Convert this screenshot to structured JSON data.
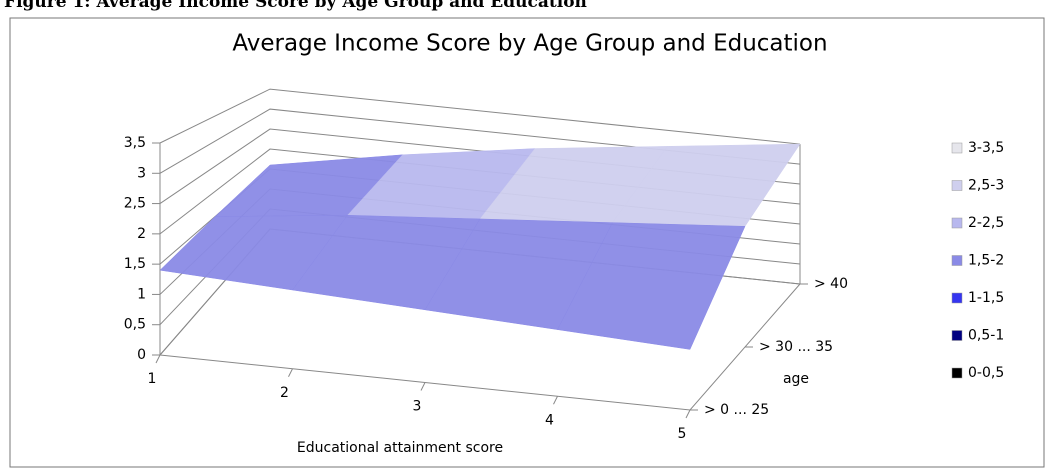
{
  "caption": "Figure 1: Average Income Score by Age Group and Education",
  "chart_data": {
    "type": "surface3d",
    "title": "Average Income Score by Age Group and Education",
    "x_label": "Educational attainment score",
    "depth_label": "age",
    "x": [
      1,
      2,
      3,
      4,
      5
    ],
    "xticks": [
      1,
      2,
      3,
      4,
      5
    ],
    "series": [
      {
        "name": "> 0 ... 25",
        "values": [
          1.4,
          1.3,
          1.2,
          1.1,
          1.0
        ]
      },
      {
        "name": "> 30 ... 35",
        "values": [
          1.5,
          1.8,
          2.0,
          2.2,
          2.4
        ]
      },
      {
        "name": "> 40",
        "values": [
          1.6,
          2.2,
          2.7,
          3.1,
          3.5
        ]
      }
    ],
    "zlim": [
      0,
      3.5
    ],
    "zticks": [
      0,
      {
        "value": 0.5,
        "label": "0,5"
      },
      1,
      {
        "value": 1.5,
        "label": "1,5"
      },
      2,
      {
        "value": 2.5,
        "label": "2,5"
      },
      3,
      {
        "value": 3.5,
        "label": "3,5"
      }
    ],
    "bands": [
      {
        "label": "3-3,5",
        "from": 3,
        "to": 3.5,
        "color": "#e6e6ec"
      },
      {
        "label": "2,5-3",
        "from": 2.5,
        "to": 3,
        "color": "#cfcfee"
      },
      {
        "label": "2-2,5",
        "from": 2,
        "to": 2.5,
        "color": "#b8b8ee"
      },
      {
        "label": "1,5-2",
        "from": 1.5,
        "to": 2,
        "color": "#8a8ae6"
      },
      {
        "label": "1-1,5",
        "from": 1,
        "to": 1.5,
        "color": "#3535f0"
      },
      {
        "label": "0,5-1",
        "from": 0.5,
        "to": 1,
        "color": "#000080"
      },
      {
        "label": "0-0,5",
        "from": 0,
        "to": 0.5,
        "color": "#000000"
      }
    ]
  }
}
